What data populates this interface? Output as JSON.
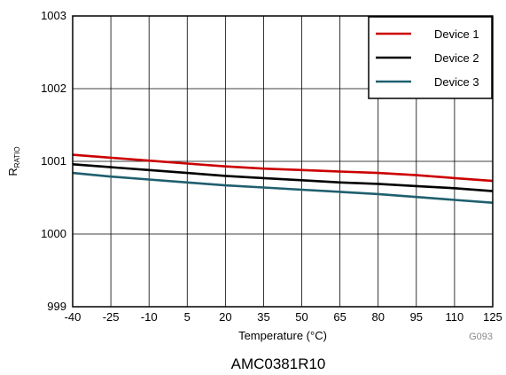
{
  "chart_data": {
    "type": "line",
    "xlabel": "Temperature (°C)",
    "ylabel_main": "R",
    "ylabel_sub": "RATIO",
    "xlim": [
      -40,
      125
    ],
    "ylim": [
      999,
      1003
    ],
    "x_ticks": [
      -40,
      -25,
      -10,
      5,
      20,
      35,
      50,
      65,
      80,
      95,
      110,
      125
    ],
    "y_ticks": [
      999,
      1000,
      1001,
      1002,
      1003
    ],
    "grid": true,
    "legend_position": "top-right",
    "series": [
      {
        "name": "Device 1",
        "color": "#cc0000",
        "x": [
          -40,
          -25,
          -10,
          5,
          20,
          35,
          50,
          65,
          80,
          95,
          110,
          125
        ],
        "y": [
          1001.09,
          1001.05,
          1001.01,
          1000.97,
          1000.93,
          1000.9,
          1000.88,
          1000.86,
          1000.84,
          1000.81,
          1000.77,
          1000.73
        ]
      },
      {
        "name": "Device 2",
        "color": "#000000",
        "x": [
          -40,
          -25,
          -10,
          5,
          20,
          35,
          50,
          65,
          80,
          95,
          110,
          125
        ],
        "y": [
          1000.96,
          1000.92,
          1000.88,
          1000.84,
          1000.8,
          1000.77,
          1000.74,
          1000.71,
          1000.69,
          1000.66,
          1000.63,
          1000.59
        ]
      },
      {
        "name": "Device 3",
        "color": "#1f5f6e",
        "x": [
          -40,
          -25,
          -10,
          5,
          20,
          35,
          50,
          65,
          80,
          95,
          110,
          125
        ],
        "y": [
          1000.84,
          1000.79,
          1000.75,
          1000.71,
          1000.67,
          1000.64,
          1000.61,
          1000.58,
          1000.55,
          1000.51,
          1000.47,
          1000.43
        ]
      }
    ],
    "figure_code": "G093",
    "caption": "AMC0381R10"
  }
}
